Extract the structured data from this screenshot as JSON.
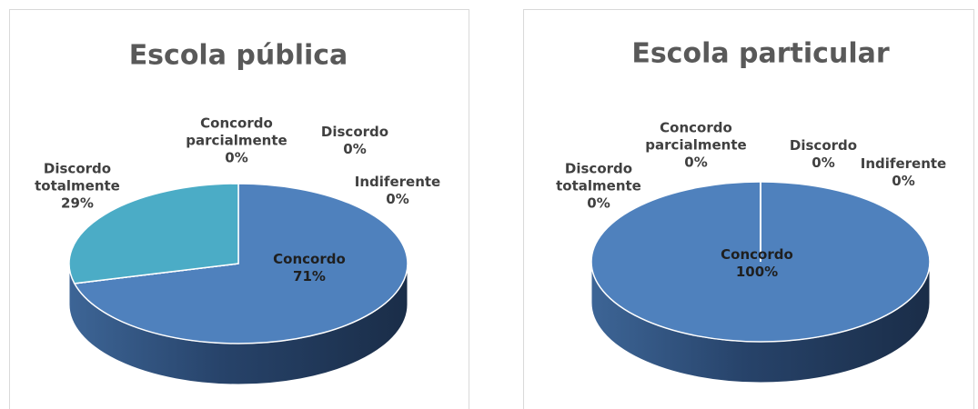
{
  "chart_data": [
    {
      "type": "pie",
      "title": "Escola pública",
      "categories": [
        "Concordo",
        "Indiferente",
        "Discordo",
        "Concordo parcialmente",
        "Discordo totalmente"
      ],
      "values": [
        71,
        0,
        0,
        0,
        29
      ],
      "value_labels": [
        "71%",
        "0%",
        "0%",
        "0%",
        "29%"
      ],
      "colors": [
        "#4f81bd",
        "#9bbb59",
        "#8064a2",
        "#c0504d",
        "#4bacc6"
      ]
    },
    {
      "type": "pie",
      "title": "Escola particular",
      "categories": [
        "Concordo",
        "Indiferente",
        "Discordo",
        "Concordo parcialmente",
        "Discordo totalmente"
      ],
      "values": [
        100,
        0,
        0,
        0,
        0
      ],
      "value_labels": [
        "100%",
        "0%",
        "0%",
        "0%",
        "0%"
      ],
      "colors": [
        "#4f81bd",
        "#9bbb59",
        "#8064a2",
        "#c0504d",
        "#4bacc6"
      ]
    }
  ]
}
